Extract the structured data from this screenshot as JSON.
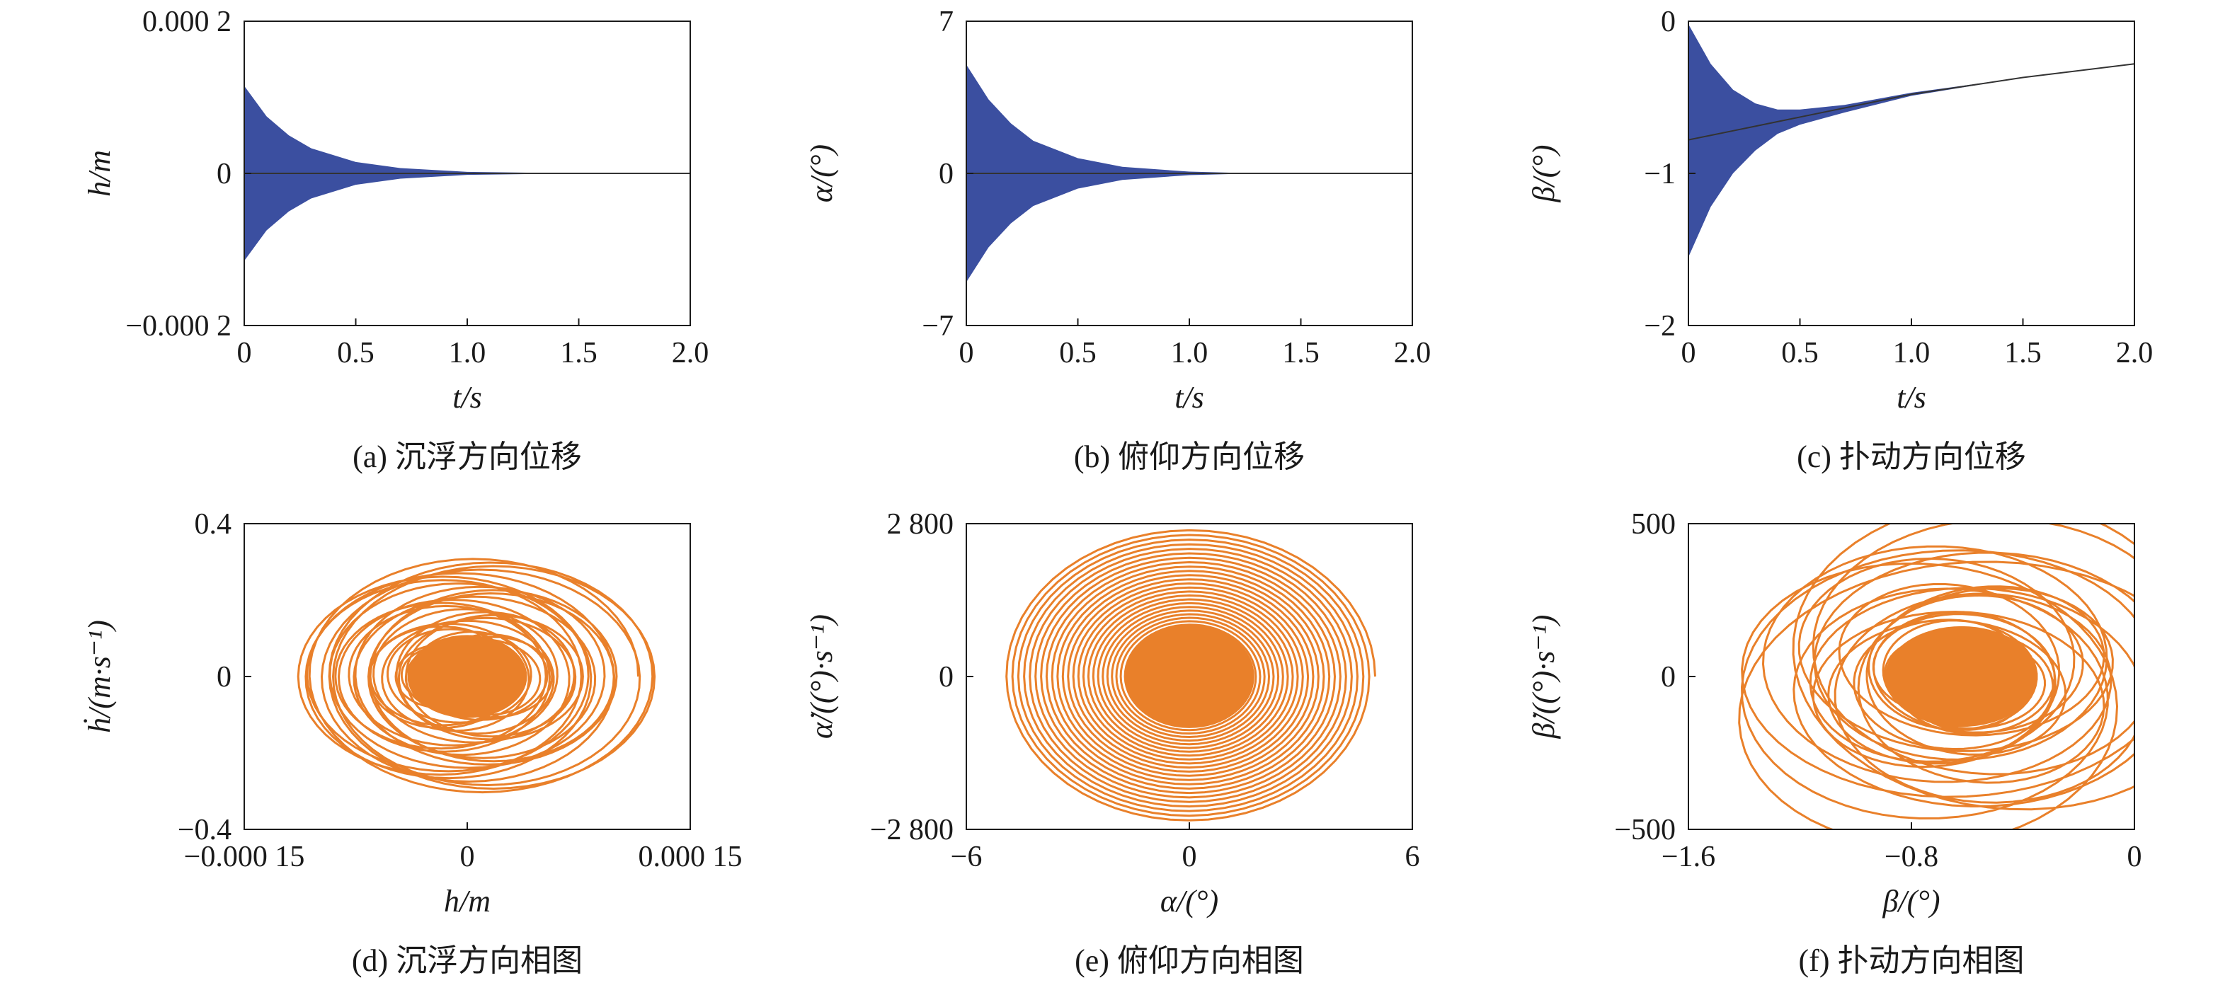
{
  "chart_data": [
    {
      "type": "line",
      "caption": "(a) 沉浮方向位移",
      "xlabel": "t/s",
      "ylabel": "h/m",
      "xlim": [
        0,
        2.0
      ],
      "ylim": [
        -0.0002,
        0.0002
      ],
      "xticks": [
        "0",
        "0.5",
        "1.0",
        "1.5",
        "2.0"
      ],
      "yticks": [
        "−0.000 2",
        "0",
        "0.000 2"
      ],
      "ytick_values": [
        -0.0002,
        0,
        0.0002
      ],
      "color": "#3b4fa0",
      "series": [
        {
          "x": [
            0,
            0.1,
            0.2,
            0.3,
            0.5,
            0.7,
            1.0,
            1.5,
            2.0
          ],
          "upper": [
            0.000115,
            7.5e-05,
            5e-05,
            3.3e-05,
            1.5e-05,
            7e-06,
            2e-06,
            0.0,
            0.0
          ],
          "lower": [
            -0.000115,
            -7.5e-05,
            -5e-05,
            -3.3e-05,
            -1.5e-05,
            -7e-06,
            -2e-06,
            0.0,
            0.0
          ],
          "center": [
            0,
            0,
            0,
            0,
            0,
            0,
            0,
            0,
            0
          ]
        }
      ]
    },
    {
      "type": "line",
      "caption": "(b) 俯仰方向位移",
      "xlabel": "t/s",
      "ylabel": "α/(°)",
      "xlim": [
        0,
        2.0
      ],
      "ylim": [
        -7,
        7
      ],
      "xticks": [
        "0",
        "0.5",
        "1.0",
        "1.5",
        "2.0"
      ],
      "yticks": [
        "−7",
        "0",
        "7"
      ],
      "ytick_values": [
        -7,
        0,
        7
      ],
      "color": "#3b4fa0",
      "series": [
        {
          "x": [
            0,
            0.1,
            0.2,
            0.3,
            0.5,
            0.7,
            1.0,
            1.3,
            2.0
          ],
          "upper": [
            5.0,
            3.4,
            2.3,
            1.5,
            0.7,
            0.3,
            0.08,
            0.0,
            0.0
          ],
          "lower": [
            -5.0,
            -3.4,
            -2.3,
            -1.5,
            -0.7,
            -0.3,
            -0.08,
            0.0,
            0.0
          ],
          "center": [
            0,
            0,
            0,
            0,
            0,
            0,
            0,
            0,
            0
          ]
        }
      ]
    },
    {
      "type": "line",
      "caption": "(c) 扑动方向位移",
      "xlabel": "t/s",
      "ylabel": "β/(°)",
      "xlim": [
        0,
        2.0
      ],
      "ylim": [
        -2,
        0
      ],
      "xticks": [
        "0",
        "0.5",
        "1.0",
        "1.5",
        "2.0"
      ],
      "yticks": [
        "−2",
        "−1",
        "0"
      ],
      "ytick_values": [
        -2,
        -1,
        0
      ],
      "color": "#3b4fa0",
      "series": [
        {
          "x": [
            0,
            0.1,
            0.2,
            0.3,
            0.4,
            0.5,
            0.7,
            1.0,
            1.5,
            2.0
          ],
          "upper": [
            -0.02,
            -0.28,
            -0.45,
            -0.54,
            -0.58,
            -0.58,
            -0.55,
            -0.47,
            -0.37,
            -0.28
          ],
          "lower": [
            -1.55,
            -1.22,
            -1.0,
            -0.85,
            -0.74,
            -0.68,
            -0.6,
            -0.49,
            -0.37,
            -0.28
          ],
          "center": [
            -0.78,
            -0.75,
            -0.72,
            -0.69,
            -0.66,
            -0.63,
            -0.57,
            -0.48,
            -0.37,
            -0.28
          ]
        }
      ]
    },
    {
      "type": "line",
      "caption": "(d) 沉浮方向相图",
      "xlabel": "h/m",
      "ylabel": "ḣ/(m·s⁻¹)",
      "xlim": [
        -0.00015,
        0.00015
      ],
      "ylim": [
        -0.4,
        0.4
      ],
      "xticks": [
        "−0.000 15",
        "0",
        "0.000 15"
      ],
      "xtick_values": [
        -0.00015,
        0,
        0.00015
      ],
      "yticks": [
        "−0.4",
        "0",
        "0.4"
      ],
      "ytick_values": [
        -0.4,
        0,
        0.4
      ],
      "color": "#e9802a",
      "phase": {
        "cx": 0,
        "cy": 0,
        "rx_max": 0.000115,
        "ry_max": 0.31,
        "lobe_offset": 1.8e-05,
        "turns": 42
      }
    },
    {
      "type": "line",
      "caption": "(e) 俯仰方向相图",
      "xlabel": "α/(°)",
      "ylabel": "α̇/((°)·s⁻¹)",
      "xlim": [
        -6,
        6
      ],
      "ylim": [
        -2800,
        2800
      ],
      "xticks": [
        "−6",
        "0",
        "6"
      ],
      "xtick_values": [
        -6,
        0,
        6
      ],
      "yticks": [
        "−2 800",
        "0",
        "2 800"
      ],
      "ytick_values": [
        -2800,
        0,
        2800
      ],
      "color": "#e9802a",
      "phase": {
        "cx": 0,
        "cy": 0,
        "rx_max": 5.0,
        "ry_max": 2700,
        "turns": 40
      }
    },
    {
      "type": "line",
      "caption": "(f) 扑动方向相图",
      "xlabel": "β/(°)",
      "ylabel": "β̇/((°)·s⁻¹)",
      "xlim": [
        -1.6,
        0
      ],
      "ylim": [
        -500,
        500
      ],
      "xticks": [
        "−1.6",
        "−0.8",
        "0"
      ],
      "xtick_values": [
        -1.6,
        -0.8,
        0
      ],
      "yticks": [
        "−500",
        "0",
        "500"
      ],
      "ytick_values": [
        -500,
        0,
        500
      ],
      "color": "#e9802a",
      "phase": {
        "cx": -0.62,
        "cy": 0,
        "rx_max": 0.78,
        "ry_max": 470,
        "turns": 36
      }
    }
  ]
}
